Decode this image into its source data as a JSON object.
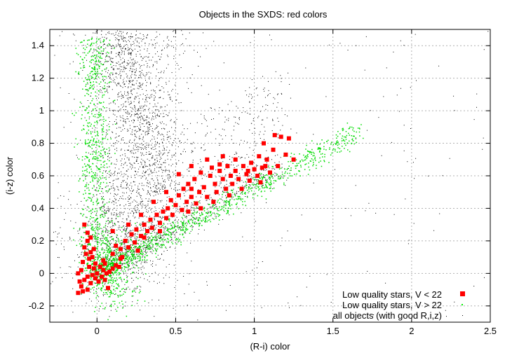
{
  "chart_data": {
    "type": "scatter",
    "title": "Objects in the SXDS: red colors",
    "xlabel": "(R-i) color",
    "ylabel": "(i-z) color",
    "xlim": [
      -0.3,
      2.5
    ],
    "ylim": [
      -0.3,
      1.5
    ],
    "xticks": [
      {
        "v": 0,
        "label": "0"
      },
      {
        "v": 0.5,
        "label": "0.5"
      },
      {
        "v": 1,
        "label": "1"
      },
      {
        "v": 1.5,
        "label": "1.5"
      },
      {
        "v": 2,
        "label": "2"
      },
      {
        "v": 2.5,
        "label": "2.5"
      }
    ],
    "yticks": [
      {
        "v": -0.2,
        "label": "-0.2"
      },
      {
        "v": 0,
        "label": "0"
      },
      {
        "v": 0.2,
        "label": "0.2"
      },
      {
        "v": 0.4,
        "label": "0.4"
      },
      {
        "v": 0.6,
        "label": "0.6"
      },
      {
        "v": 0.8,
        "label": "0.8"
      },
      {
        "v": 1,
        "label": "1"
      },
      {
        "v": 1.2,
        "label": "1.2"
      },
      {
        "v": 1.4,
        "label": "1.4"
      }
    ],
    "grid": true,
    "legend_position": "bottom-right",
    "series": [
      {
        "name": "Low quality stars, V < 22",
        "color": "#ff0000",
        "marker": "square",
        "points": [
          [
            -0.12,
            -0.12
          ],
          [
            -0.11,
            -0.05
          ],
          [
            -0.12,
            0.0
          ],
          [
            -0.1,
            0.02
          ],
          [
            -0.1,
            -0.08
          ],
          [
            -0.09,
            -0.11
          ],
          [
            -0.08,
            -0.04
          ],
          [
            -0.09,
            0.07
          ],
          [
            -0.07,
            0.12
          ],
          [
            -0.08,
            0.16
          ],
          [
            -0.06,
            -0.02
          ],
          [
            -0.05,
            0.04
          ],
          [
            -0.05,
            0.09
          ],
          [
            -0.04,
            0.13
          ],
          [
            -0.06,
            0.2
          ],
          [
            -0.04,
            -0.06
          ],
          [
            -0.03,
            -0.01
          ],
          [
            -0.02,
            0.03
          ],
          [
            -0.03,
            0.1
          ],
          [
            -0.06,
            -0.1
          ],
          [
            -0.01,
            0.06
          ],
          [
            -0.02,
            0.15
          ],
          [
            0.0,
            0.0
          ],
          [
            0.01,
            -0.05
          ],
          [
            0.02,
            0.04
          ],
          [
            0.03,
            -0.02
          ],
          [
            0.04,
            0.02
          ],
          [
            0.05,
            -0.04
          ],
          [
            0.06,
            0.0
          ],
          [
            0.07,
            -0.09
          ],
          [
            0.05,
            0.06
          ],
          [
            0.08,
            0.01
          ],
          [
            0.1,
            0.03
          ],
          [
            0.12,
            0.05
          ],
          [
            0.14,
            0.04
          ],
          [
            0.15,
            0.09
          ],
          [
            -0.08,
            0.3
          ],
          [
            -0.06,
            0.25
          ],
          [
            0.04,
            0.08
          ],
          [
            -0.01,
            -0.03
          ],
          [
            0.1,
            0.12
          ],
          [
            0.12,
            0.17
          ],
          [
            0.15,
            0.15
          ],
          [
            0.18,
            0.2
          ],
          [
            0.2,
            0.16
          ],
          [
            0.22,
            0.24
          ],
          [
            0.24,
            0.19
          ],
          [
            0.25,
            0.27
          ],
          [
            0.28,
            0.23
          ],
          [
            0.3,
            0.3
          ],
          [
            0.32,
            0.26
          ],
          [
            0.34,
            0.33
          ],
          [
            0.35,
            0.28
          ],
          [
            0.38,
            0.36
          ],
          [
            0.4,
            0.31
          ],
          [
            0.42,
            0.38
          ],
          [
            0.44,
            0.34
          ],
          [
            0.45,
            0.4
          ],
          [
            0.47,
            0.45
          ],
          [
            0.48,
            0.36
          ],
          [
            0.5,
            0.42
          ],
          [
            0.52,
            0.48
          ],
          [
            0.54,
            0.39
          ],
          [
            0.55,
            0.52
          ],
          [
            0.57,
            0.44
          ],
          [
            0.58,
            0.55
          ],
          [
            0.6,
            0.47
          ],
          [
            0.62,
            0.58
          ],
          [
            0.63,
            0.43
          ],
          [
            0.65,
            0.5
          ],
          [
            0.66,
            0.62
          ],
          [
            0.68,
            0.53
          ],
          [
            0.7,
            0.47
          ],
          [
            0.72,
            0.6
          ],
          [
            0.73,
            0.65
          ],
          [
            0.75,
            0.55
          ],
          [
            0.76,
            0.5
          ],
          [
            0.78,
            0.63
          ],
          [
            0.8,
            0.58
          ],
          [
            0.82,
            0.52
          ],
          [
            0.83,
            0.66
          ],
          [
            0.85,
            0.6
          ],
          [
            0.86,
            0.55
          ],
          [
            0.88,
            0.63
          ],
          [
            0.9,
            0.58
          ],
          [
            0.92,
            0.52
          ],
          [
            0.93,
            0.66
          ],
          [
            0.95,
            0.61
          ],
          [
            0.97,
            0.57
          ],
          [
            0.98,
            0.68
          ],
          [
            1.0,
            0.64
          ],
          [
            1.02,
            0.6
          ],
          [
            1.03,
            0.72
          ],
          [
            1.05,
            0.65
          ],
          [
            1.06,
            0.8
          ],
          [
            1.08,
            0.7
          ],
          [
            1.1,
            0.62
          ],
          [
            1.12,
            0.76
          ],
          [
            1.13,
            0.85
          ],
          [
            1.15,
            0.66
          ],
          [
            1.17,
            0.84
          ],
          [
            1.2,
            0.73
          ],
          [
            1.22,
            0.83
          ],
          [
            1.25,
            0.7
          ],
          [
            0.52,
            0.61
          ],
          [
            0.6,
            0.66
          ],
          [
            0.7,
            0.7
          ],
          [
            0.78,
            0.67
          ],
          [
            0.8,
            0.72
          ],
          [
            0.58,
            0.38
          ],
          [
            0.66,
            0.4
          ],
          [
            0.74,
            0.44
          ],
          [
            0.84,
            0.48
          ],
          [
            0.36,
            0.44
          ],
          [
            0.44,
            0.5
          ],
          [
            0.28,
            0.36
          ],
          [
            0.2,
            0.3
          ],
          [
            0.26,
            0.14
          ],
          [
            0.16,
            0.1
          ],
          [
            1.04,
            0.56
          ],
          [
            1.07,
            0.66
          ],
          [
            0.96,
            0.63
          ],
          [
            0.88,
            0.7
          ],
          [
            0.6,
            0.52
          ],
          [
            0.4,
            0.26
          ],
          [
            0.3,
            0.22
          ],
          [
            0.1,
            0.26
          ],
          [
            -0.04,
            0.22
          ]
        ]
      },
      {
        "name": "Low quality stars, V > 22",
        "color": "#00ee00",
        "marker": "dot"
      },
      {
        "name": "all objects (with good R,i,z)",
        "color": "#000000",
        "marker": "dot"
      }
    ]
  }
}
